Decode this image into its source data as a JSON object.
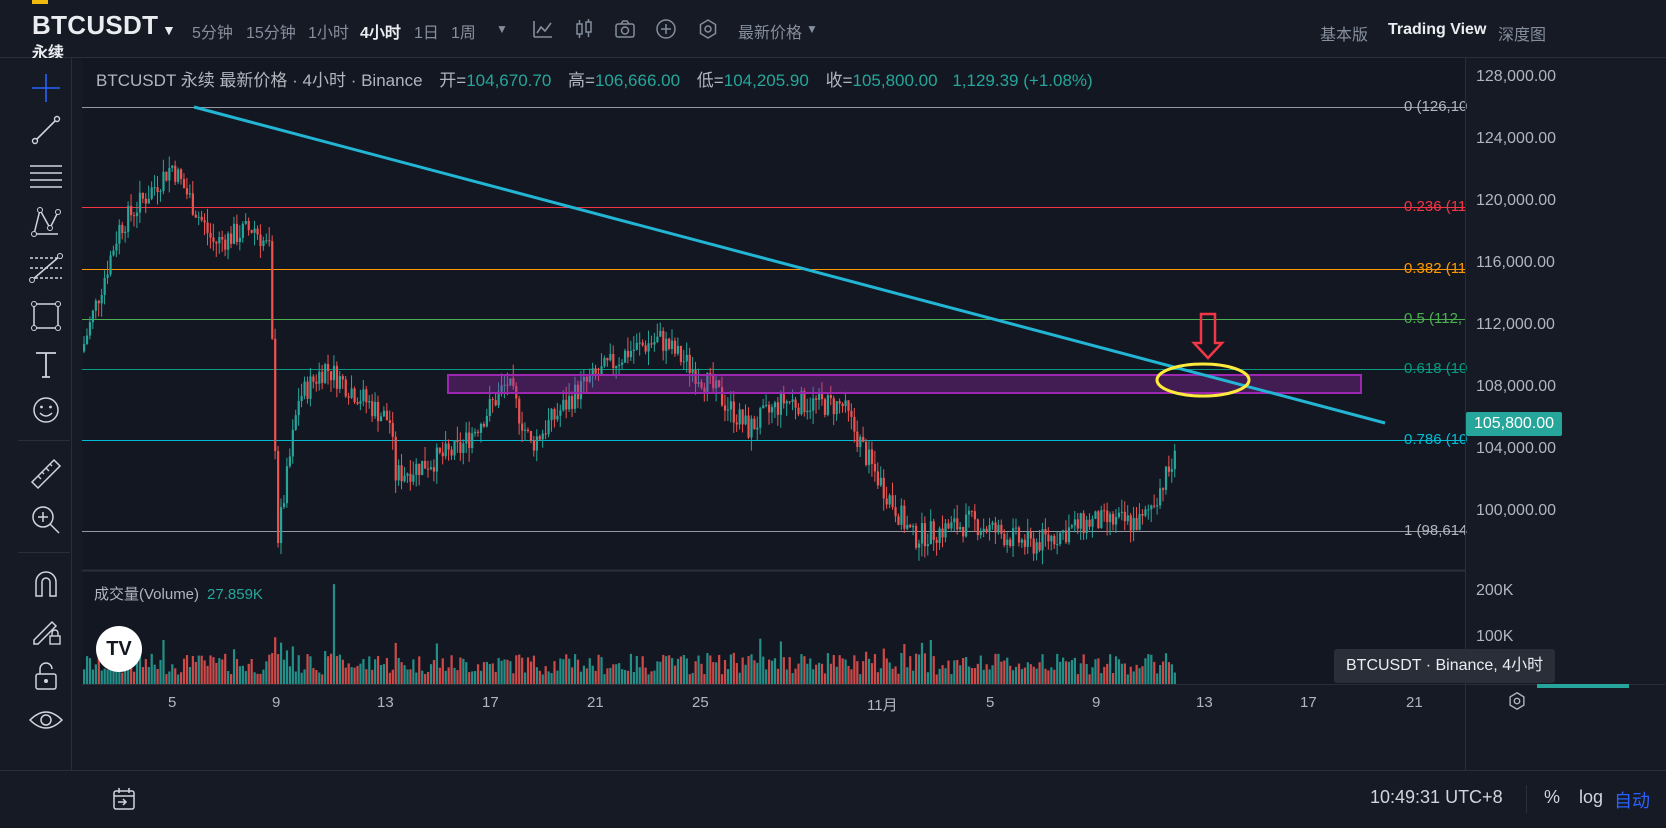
{
  "header": {
    "symbol": "BTCUSDT",
    "contract": "永续",
    "timeframes": [
      "5分钟",
      "15分钟",
      "1小时",
      "4小时",
      "1日",
      "1周"
    ],
    "active_timeframe": "4小时",
    "price_type": "最新价格",
    "view_tabs": [
      "基本版",
      "Trading View",
      "深度图"
    ],
    "active_view": "Trading View"
  },
  "legend": {
    "title": "BTCUSDT 永续 最新价格 · 4小时 · Binance",
    "open_label": "开=",
    "open": "104,670.70",
    "high_label": "高=",
    "high": "106,666.00",
    "low_label": "低=",
    "low": "104,205.90",
    "close_label": "收=",
    "close": "105,800.00",
    "change": "1,129.39 (+1.08%)"
  },
  "volume_legend": {
    "name": "成交量(Volume)",
    "value": "27.859K"
  },
  "tv_badge": "TV",
  "price_scale": {
    "labels": [
      "128,000.00",
      "124,000.00",
      "120,000.00",
      "116,000.00",
      "112,000.00",
      "108,000.00",
      "104,000.00",
      "100,000.00"
    ],
    "last_price": "105,800.00",
    "volume_labels": [
      "200K",
      "100K"
    ]
  },
  "fib_levels": [
    {
      "label": "0 (126,10",
      "color": "#9598a1"
    },
    {
      "label": "0.236 (11",
      "color": "#f23645"
    },
    {
      "label": "0.382 (11",
      "color": "#ff9800"
    },
    {
      "label": "0.5 (112,",
      "color": "#4caf50"
    },
    {
      "label": "0.618 (10",
      "color": "#089981"
    },
    {
      "label": "0.786 (10",
      "color": "#00bcd4"
    },
    {
      "label": "1 (98,614",
      "color": "#9598a1"
    }
  ],
  "time_axis": [
    "5",
    "9",
    "13",
    "17",
    "21",
    "25",
    "11月",
    "5",
    "9",
    "13",
    "17",
    "21"
  ],
  "tooltip": "BTCUSDT · Binance, 4小时",
  "bottom": {
    "clock": "10:49:31 UTC+8",
    "percent": "%",
    "log": "log",
    "auto": "自动"
  },
  "colors": {
    "up": "#26a69a",
    "down": "#ef5350",
    "trendline": "#22b5d4",
    "zone": "#9c27b0",
    "ellipse": "#ffeb3b",
    "arrow": "#f23645"
  }
}
